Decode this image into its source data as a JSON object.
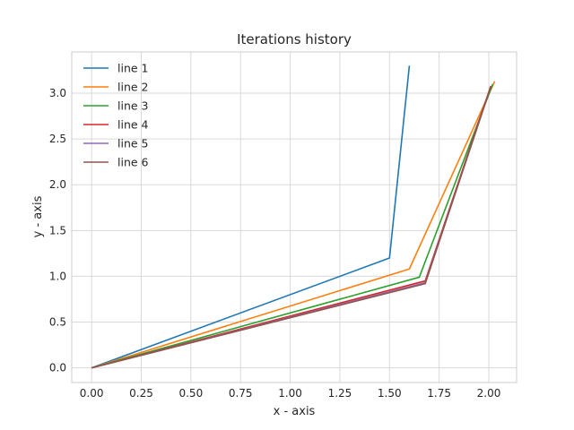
{
  "chart_data": {
    "type": "line",
    "title": "Iterations history",
    "xlabel": "x - axis",
    "ylabel": "y - axis",
    "xlim": [
      -0.1,
      2.14
    ],
    "ylim": [
      -0.16,
      3.45
    ],
    "xticks": [
      0.0,
      0.25,
      0.5,
      0.75,
      1.0,
      1.25,
      1.5,
      1.75,
      2.0
    ],
    "xtick_labels": [
      "0.00",
      "0.25",
      "0.50",
      "0.75",
      "1.00",
      "1.25",
      "1.50",
      "1.75",
      "2.00"
    ],
    "yticks": [
      0.0,
      0.5,
      1.0,
      1.5,
      2.0,
      2.5,
      3.0
    ],
    "ytick_labels": [
      "0.0",
      "0.5",
      "1.0",
      "1.5",
      "2.0",
      "2.5",
      "3.0"
    ],
    "grid": true,
    "legend_position": "top-left",
    "series": [
      {
        "name": "line 1",
        "color": "#1f77b4",
        "x": [
          0.0,
          1.5,
          1.6
        ],
        "y": [
          0.0,
          1.2,
          3.3
        ]
      },
      {
        "name": "line 2",
        "color": "#ff7f0e",
        "x": [
          0.0,
          1.6,
          2.03
        ],
        "y": [
          0.0,
          1.08,
          3.13
        ]
      },
      {
        "name": "line 3",
        "color": "#2ca02c",
        "x": [
          0.0,
          1.65,
          2.02
        ],
        "y": [
          0.0,
          0.99,
          3.1
        ]
      },
      {
        "name": "line 4",
        "color": "#d62728",
        "x": [
          0.0,
          1.68,
          2.01
        ],
        "y": [
          0.0,
          0.95,
          3.08
        ]
      },
      {
        "name": "line 5",
        "color": "#9467bd",
        "x": [
          0.0,
          1.68,
          2.01
        ],
        "y": [
          0.0,
          0.93,
          3.07
        ]
      },
      {
        "name": "line 6",
        "color": "#8c564b",
        "x": [
          0.0,
          1.68,
          2.01
        ],
        "y": [
          0.0,
          0.92,
          3.07
        ]
      }
    ]
  }
}
